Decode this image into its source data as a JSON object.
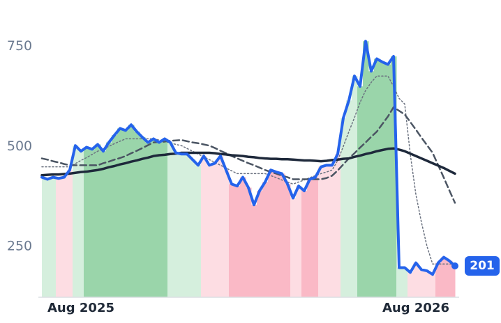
{
  "chart_data": {
    "type": "line",
    "categories": [
      null,
      null,
      null,
      null,
      null,
      null,
      null,
      "Aug 2025",
      null,
      null,
      null,
      null,
      null,
      null,
      null,
      null,
      null,
      null,
      null,
      null,
      null,
      null,
      null,
      null,
      null,
      null,
      null,
      null,
      null,
      null,
      null,
      null,
      null,
      null,
      null,
      null,
      null,
      null,
      null,
      null,
      null,
      null,
      null,
      null,
      null,
      null,
      null,
      null,
      null,
      null,
      null,
      null,
      null,
      null,
      null,
      null,
      null,
      null,
      null,
      null,
      null,
      null,
      null,
      null,
      null,
      null,
      null,
      "Aug 2026",
      null,
      null,
      null,
      null,
      null,
      null,
      null
    ],
    "series": [
      {
        "color": "#2563eb",
        "style": "solid",
        "width": 4,
        "values": [
          423,
          418,
          423,
          420,
          423,
          441,
          502,
          488,
          498,
          493,
          505,
          488,
          510,
          528,
          545,
          540,
          554,
          537,
          523,
          510,
          519,
          510,
          519,
          510,
          484,
          481,
          481,
          467,
          453,
          476,
          453,
          458,
          476,
          441,
          406,
          401,
          423,
          397,
          354,
          389,
          411,
          441,
          436,
          432,
          406,
          371,
          401,
          389,
          418,
          423,
          449,
          453,
          453,
          481,
          571,
          615,
          676,
          650,
          763,
          688,
          719,
          711,
          705,
          725,
          197,
          197,
          185,
          209,
          192,
          189,
          180,
          209,
          223,
          214,
          201
        ]
      },
      {
        "color": "#1e293b",
        "style": "solid",
        "width": 3.5,
        "values": [
          428,
          429,
          430,
          430,
          431,
          432,
          434,
          436,
          437,
          439,
          441,
          444,
          448,
          451,
          455,
          458,
          462,
          465,
          469,
          472,
          476,
          478,
          479,
          481,
          482,
          484,
          484,
          484,
          484,
          484,
          484,
          483,
          481,
          480,
          478,
          477,
          476,
          474,
          473,
          471,
          470,
          469,
          469,
          468,
          468,
          467,
          466,
          465,
          465,
          464,
          463,
          464,
          466,
          467,
          469,
          470,
          474,
          477,
          481,
          484,
          488,
          491,
          494,
          495,
          492,
          488,
          482,
          476,
          470,
          464,
          458,
          452,
          446,
          439,
          432
        ]
      },
      {
        "color": "#4b5563",
        "style": "dashed",
        "width": 2.5,
        "values": [
          470,
          467,
          463,
          460,
          456,
          453,
          453,
          453,
          453,
          453,
          453,
          458,
          462,
          467,
          471,
          476,
          483,
          489,
          496,
          503,
          510,
          511,
          512,
          514,
          515,
          516,
          513,
          510,
          508,
          505,
          502,
          496,
          489,
          483,
          476,
          470,
          464,
          458,
          453,
          447,
          441,
          436,
          432,
          427,
          423,
          418,
          418,
          418,
          418,
          418,
          418,
          421,
          427,
          440,
          455,
          470,
          483,
          497,
          510,
          524,
          537,
          556,
          575,
          598,
          589,
          580,
          561,
          542,
          522,
          503,
          484,
          453,
          422,
          390,
          359
        ]
      },
      {
        "color": "#6b7280",
        "style": "dotted",
        "width": 1.5,
        "values": [
          449,
          449,
          449,
          449,
          449,
          449,
          457,
          465,
          472,
          480,
          488,
          494,
          500,
          507,
          513,
          519,
          519,
          519,
          519,
          519,
          519,
          516,
          512,
          509,
          505,
          502,
          495,
          488,
          481,
          474,
          467,
          460,
          453,
          446,
          439,
          432,
          432,
          432,
          432,
          432,
          432,
          427,
          422,
          416,
          411,
          406,
          411,
          416,
          422,
          427,
          432,
          436,
          441,
          465,
          500,
          537,
          572,
          610,
          640,
          660,
          676,
          676,
          676,
          650,
          620,
          606,
          480,
          380,
          310,
          250,
          206,
          206,
          206,
          206,
          206
        ]
      }
    ],
    "bands": [
      {
        "from": 0,
        "to": 2,
        "color": "#d5efdd"
      },
      {
        "from": 3,
        "to": 5,
        "color": "#fddde3"
      },
      {
        "from": 6,
        "to": 7,
        "color": "#d5efdd"
      },
      {
        "from": 8,
        "to": 22,
        "color": "#9ad5aa"
      },
      {
        "from": 23,
        "to": 28,
        "color": "#d5efdd"
      },
      {
        "from": 29,
        "to": 33,
        "color": "#fddde3"
      },
      {
        "from": 34,
        "to": 44,
        "color": "#fab9c6"
      },
      {
        "from": 45,
        "to": 46,
        "color": "#fddde3"
      },
      {
        "from": 47,
        "to": 49,
        "color": "#fab9c6"
      },
      {
        "from": 50,
        "to": 53,
        "color": "#fddde3"
      },
      {
        "from": 54,
        "to": 56,
        "color": "#d5efdd"
      },
      {
        "from": 57,
        "to": 63,
        "color": "#9ad5aa"
      },
      {
        "from": 64,
        "to": 65,
        "color": "#d5efdd"
      },
      {
        "from": 66,
        "to": 70,
        "color": "#fddde3"
      },
      {
        "from": 71,
        "to": 74,
        "color": "#fab9c6"
      }
    ],
    "ylim": [
      123,
      866
    ],
    "yticks": [
      250,
      500,
      750
    ],
    "grid": false
  }
}
